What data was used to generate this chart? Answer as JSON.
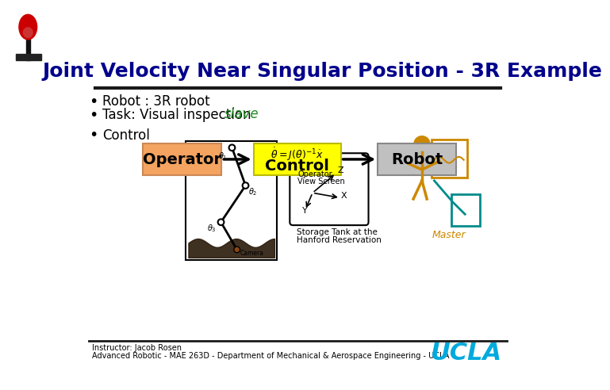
{
  "title": "Joint Velocity Near Singular Position - 3R Example",
  "title_color": "#00008B",
  "title_fontsize": 18,
  "background_color": "#FFFFFF",
  "bullet1": "Robot : 3R robot",
  "bullet2": "Task: Visual inspection",
  "bullet2_extra": "slave",
  "bullet3": "Control",
  "footer_line1": "Instructor: Jacob Rosen",
  "footer_line2": "Advanced Robotic - MAE 263D - Department of Mechanical & Aerospace Engineering - UCLA",
  "ucla_text": "UCLA",
  "ucla_color": "#00AADD",
  "operator_bg": "#F4A460",
  "control_bg": "#FFFF00",
  "robot_bg": "#C0C0C0",
  "arrow_color": "#000000",
  "separator_color": "#1a1a1a",
  "slave_color": "#228B22",
  "master_color": "#CC8800",
  "storage_text": "Storage Tank at the\nHanford Reservation",
  "control_label": "Control",
  "operator_label": "Operator",
  "robot_label": "Robot"
}
